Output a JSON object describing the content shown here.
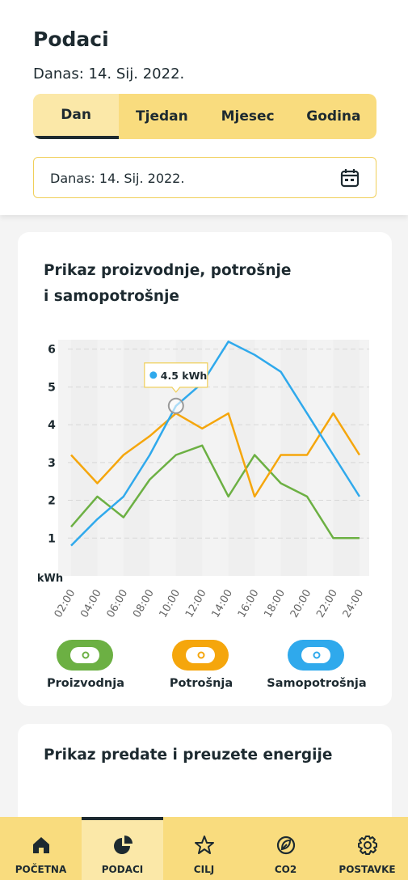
{
  "header": {
    "title": "Podaci",
    "date": "Danas: 14. Sij. 2022."
  },
  "tabs": [
    "Dan",
    "Tjedan",
    "Mjesec",
    "Godina"
  ],
  "date_picker": "Danas: 14. Sij. 2022.",
  "chart_data": {
    "type": "line",
    "title": "Prikaz proizvodnje, potrošnje i samopotrošnje",
    "y_label": "kWh",
    "categories": [
      "02:00",
      "04:00",
      "06:00",
      "08:00",
      "10:00",
      "12:00",
      "14:00",
      "16:00",
      "18:00",
      "20:00",
      "22:00",
      "24:00"
    ],
    "series": [
      {
        "name": "Proizvodnja",
        "color": "#6cb043",
        "values": [
          1.3,
          2.1,
          1.55,
          2.55,
          3.2,
          3.45,
          2.1,
          3.2,
          2.45,
          2.1,
          1.0,
          1.0
        ]
      },
      {
        "name": "Potrošnja",
        "color": "#f5a60c",
        "values": [
          3.2,
          2.45,
          3.2,
          3.7,
          4.3,
          3.9,
          4.3,
          2.1,
          3.2,
          3.2,
          4.3,
          3.2
        ]
      },
      {
        "name": "Samopotrošnja",
        "color": "#2fa9ec",
        "values": [
          0.8,
          1.5,
          2.1,
          3.2,
          4.5,
          5.1,
          6.2,
          5.85,
          5.4,
          4.3,
          3.2,
          2.1
        ]
      }
    ],
    "ylim": [
      0,
      6.25
    ],
    "yticks": [
      1,
      2,
      3,
      4,
      5,
      6
    ],
    "grid": true,
    "annotation": "4.5 kWh"
  },
  "second_card": {
    "title": "Prikaz predate i preuzete energije"
  },
  "nav": [
    "POČETNA",
    "PODACI",
    "CILJ",
    "CO2",
    "POSTAVKE"
  ]
}
